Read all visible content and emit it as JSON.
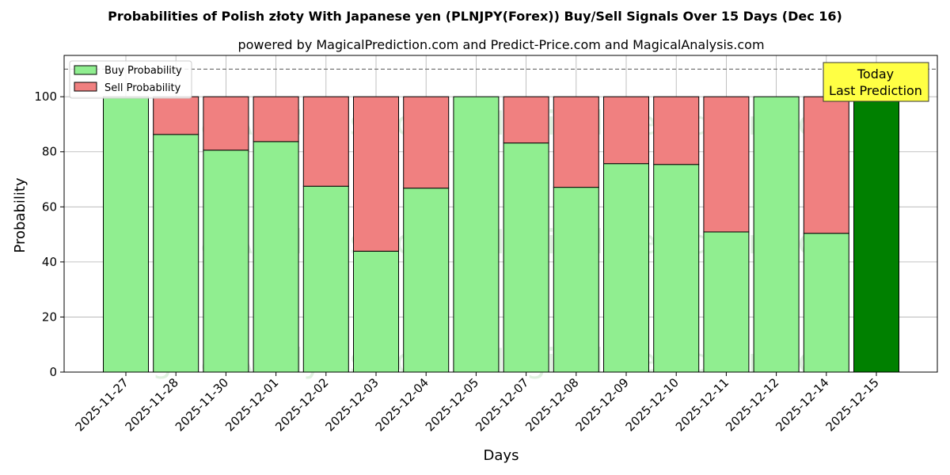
{
  "chart_data": {
    "type": "bar",
    "stacked": true,
    "title": "Probabilities of Polish złoty With Japanese yen (PLNJPY(Forex)) Buy/Sell Signals Over 15 Days (Dec 16)",
    "subtitle": "powered by MagicalPrediction.com and Predict-Price.com and MagicalAnalysis.com",
    "xlabel": "Days",
    "ylabel": "Probability",
    "ylim": [
      0,
      115
    ],
    "yticks": [
      0,
      20,
      40,
      60,
      80,
      100
    ],
    "grid": true,
    "legend_position": "top-left",
    "reference_line": 110,
    "categories": [
      "2025-11-27",
      "2025-11-28",
      "2025-11-30",
      "2025-12-01",
      "2025-12-02",
      "2025-12-03",
      "2025-12-04",
      "2025-12-05",
      "2025-12-07",
      "2025-12-08",
      "2025-12-09",
      "2025-12-10",
      "2025-12-11",
      "2025-12-12",
      "2025-12-14",
      "2025-12-15"
    ],
    "series": [
      {
        "name": "Buy Probability",
        "color": "#90ee90",
        "values": [
          100,
          86.3,
          80.6,
          83.7,
          67.5,
          43.9,
          66.8,
          100,
          83.2,
          67.1,
          75.7,
          75.4,
          50.9,
          100,
          50.4,
          100
        ]
      },
      {
        "name": "Sell Probability",
        "color": "#f08080",
        "values": [
          0,
          13.7,
          19.4,
          16.3,
          32.5,
          56.1,
          33.2,
          0,
          16.8,
          32.9,
          24.3,
          24.6,
          49.1,
          0,
          49.6,
          0
        ]
      }
    ],
    "highlight": {
      "index": 15,
      "color": "#008000",
      "label_line1": "Today",
      "label_line2": "Last Prediction"
    },
    "watermarks": [
      "MagicalAnalysis.com",
      "MagicalPrediction.com"
    ]
  }
}
